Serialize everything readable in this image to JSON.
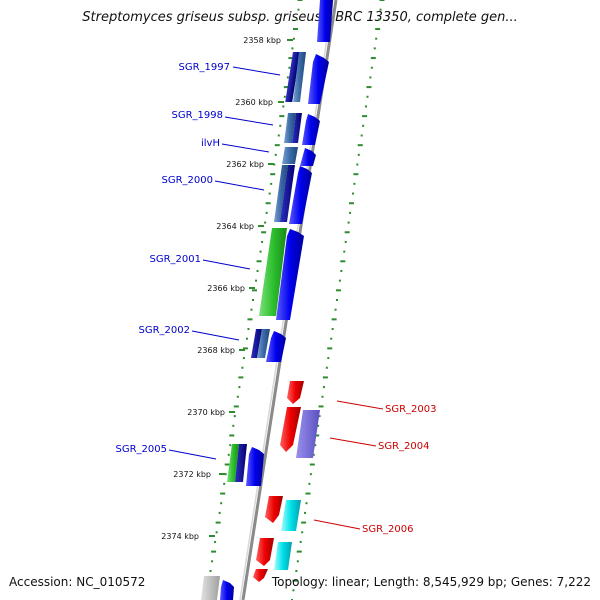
{
  "title": "Streptomyces griseus subsp. griseus NBRC 13350, complete gen...",
  "accession": "Accession: NC_010572",
  "summary": "Topology: linear; Length: 8,545,929 bp; Genes: 7,222",
  "colors": {
    "backbone": "#8a8a8a",
    "tick": "#2e8b2e",
    "forward_gene": "#0000ee",
    "reverse_gene": "#ee0000",
    "label_blue": "#0000cc",
    "label_red": "#cc0000"
  },
  "ruler_labels": [
    "2358 kbp",
    "2360 kbp",
    "2362 kbp",
    "2364 kbp",
    "2366 kbp",
    "2368 kbp",
    "2370 kbp",
    "2372 kbp",
    "2374 kbp"
  ],
  "gene_labels_left": [
    "SGR_1997",
    "SGR_1998",
    "ilvH",
    "SGR_2000",
    "SGR_2001",
    "SGR_2002",
    "SGR_2005"
  ],
  "gene_labels_right": [
    "SGR_2003",
    "SGR_2004",
    "SGR_2006"
  ]
}
